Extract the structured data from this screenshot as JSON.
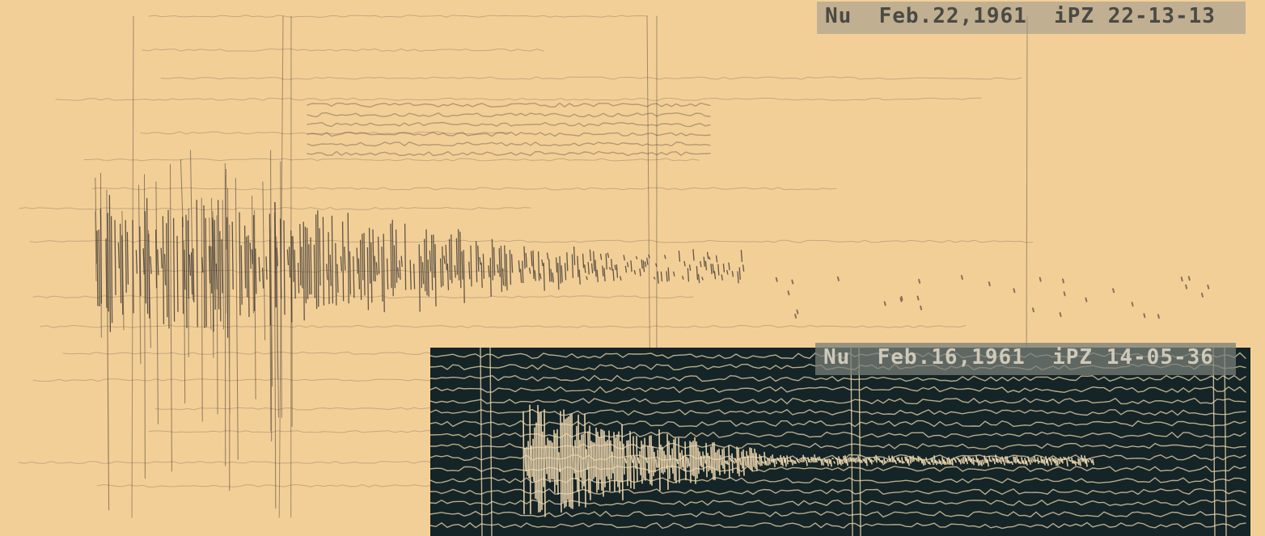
{
  "image": {
    "colors": {
      "paper": "#f3cf98",
      "ink": "#3a3530",
      "inset_background": "#152426",
      "inset_trace": "#efd9b0"
    }
  },
  "labels": {
    "top": "Nu  Feb.22,1961  iPZ 22-13-13",
    "bottom": "Nu  Feb.16,1961  iPZ 14-05-36"
  }
}
